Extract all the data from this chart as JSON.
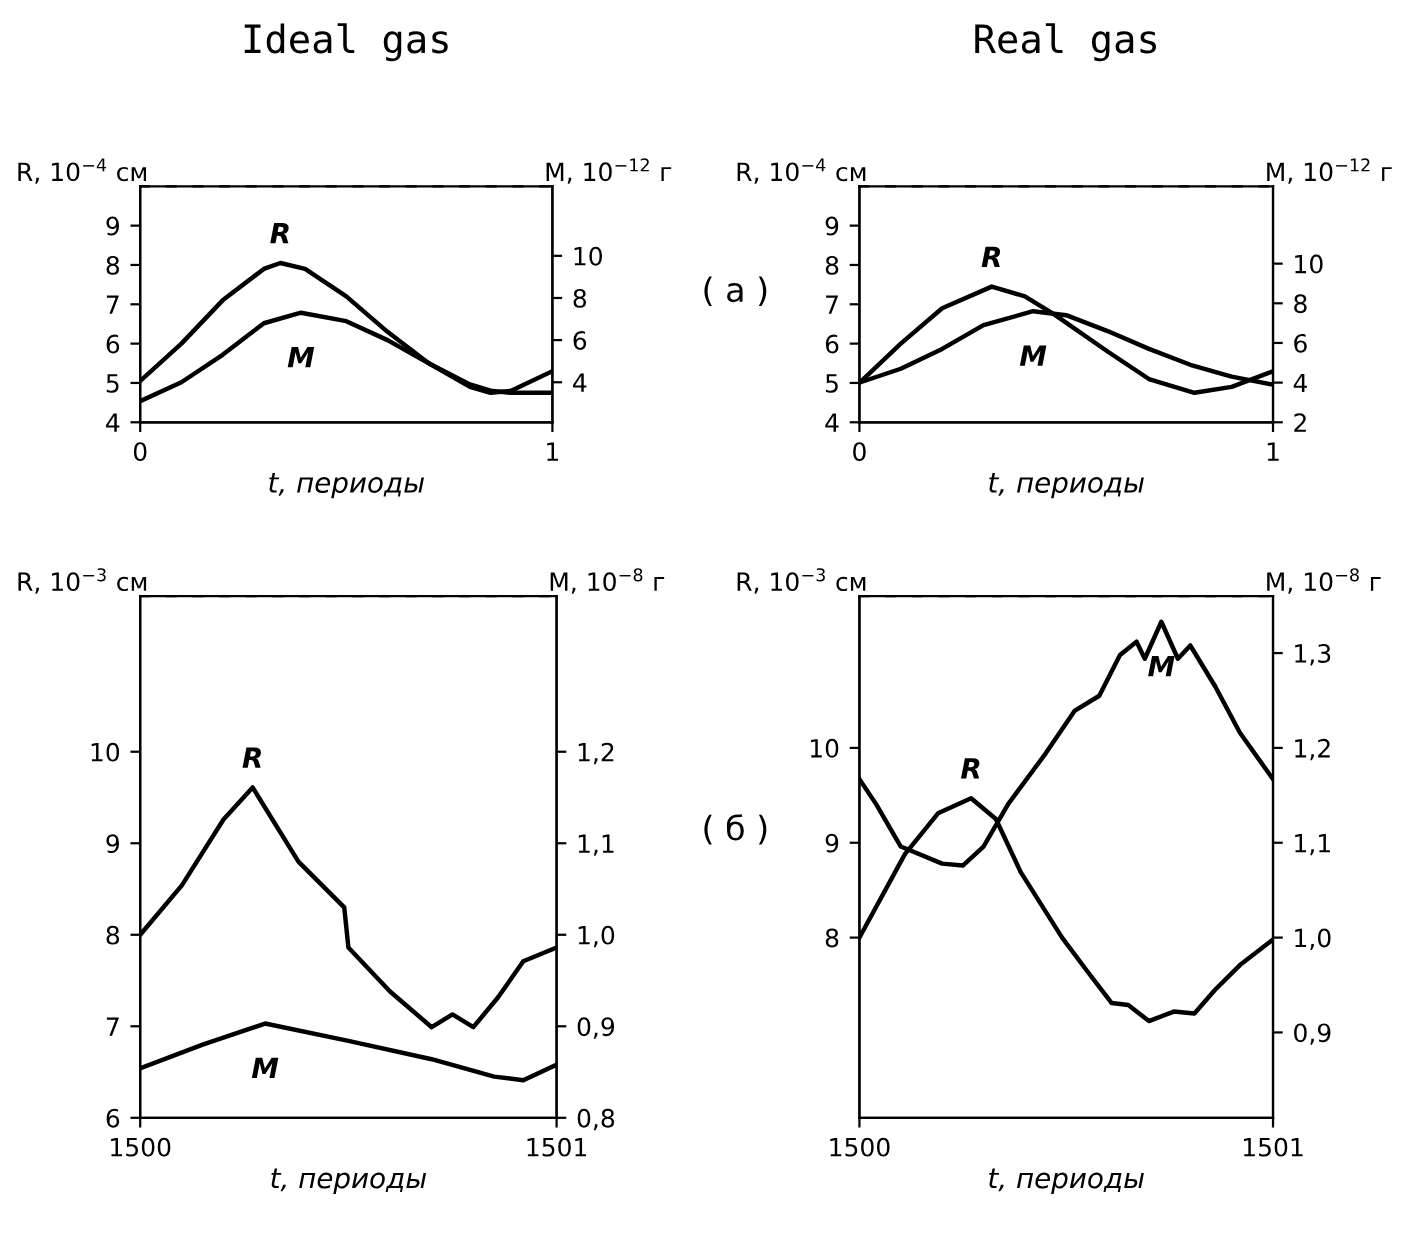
{
  "chart_data": [
    {
      "type": "line",
      "title": "Ideal gas",
      "xlabel": "t, периоды",
      "ylabel": "R, 10$^{−4}$ см",
      "y2label": "M, 10$^{−12}$ г",
      "xlim": [
        0,
        1
      ],
      "xticks": [
        0,
        1
      ],
      "ylim": [
        4,
        10
      ],
      "yticks": [
        4,
        5,
        6,
        7,
        8,
        9
      ],
      "y2lim": [
        2.1,
        13.3
      ],
      "y2ticks": [
        4,
        6,
        8,
        10
      ],
      "grid": false,
      "legend": false,
      "marker": "none",
      "line_style": "solid",
      "series": [
        {
          "name": "R",
          "color": "#000000",
          "x": [
            0,
            0.1,
            0.2,
            0.3,
            0.34,
            0.4,
            0.5,
            0.6,
            0.7,
            0.8,
            0.85,
            0.9,
            1.0
          ],
          "values": [
            5.05,
            6.0,
            7.1,
            7.9,
            8.05,
            7.9,
            7.2,
            6.3,
            5.5,
            4.9,
            4.75,
            4.8,
            5.3
          ]
        },
        {
          "name": "M",
          "color": "#000000",
          "axis": "y2",
          "x": [
            0,
            0.1,
            0.2,
            0.3,
            0.39,
            0.5,
            0.6,
            0.7,
            0.8,
            0.85,
            0.9,
            1.0
          ],
          "values": [
            3.1,
            4.0,
            5.3,
            6.8,
            7.3,
            6.9,
            6.0,
            4.9,
            3.9,
            3.6,
            3.5,
            3.5
          ]
        }
      ]
    },
    {
      "type": "line",
      "title": "Real gas",
      "xlabel": "t, периоды",
      "ylabel": "R, 10$^{−4}$ см",
      "y2label": "M, 10$^{−12}$ г",
      "annotations": [
        "( а )"
      ],
      "xlim": [
        0,
        1
      ],
      "xticks": [
        0,
        1
      ],
      "ylim": [
        4,
        10
      ],
      "yticks": [
        4,
        5,
        6,
        7,
        8,
        9
      ],
      "y2lim": [
        2,
        13.9
      ],
      "y2ticks": [
        2,
        4,
        6,
        8,
        10
      ],
      "grid": false,
      "legend": false,
      "marker": "none",
      "line_style": "solid",
      "series": [
        {
          "name": "R",
          "color": "#000000",
          "x": [
            0,
            0.1,
            0.2,
            0.32,
            0.4,
            0.47,
            0.6,
            0.7,
            0.81,
            0.9,
            1.0
          ],
          "values": [
            5.0,
            6.0,
            6.9,
            7.45,
            7.2,
            6.75,
            5.8,
            5.1,
            4.75,
            4.9,
            5.3
          ]
        },
        {
          "name": "M",
          "color": "#000000",
          "axis": "y2",
          "x": [
            0,
            0.1,
            0.2,
            0.3,
            0.42,
            0.5,
            0.6,
            0.7,
            0.8,
            0.9,
            1.0
          ],
          "values": [
            4.0,
            4.7,
            5.7,
            6.9,
            7.6,
            7.4,
            6.6,
            5.7,
            4.9,
            4.3,
            3.9
          ]
        }
      ]
    },
    {
      "type": "line",
      "xlabel": "t, периоды",
      "ylabel": "R, 10$^{−3}$ см",
      "y2label": "M, 10$^{−8}$ г",
      "xlim": [
        1500,
        1501
      ],
      "xticks": [
        1500,
        1501
      ],
      "ylim": [
        6,
        11.7
      ],
      "yticks": [
        6,
        7,
        8,
        9,
        10
      ],
      "y2lim": [
        0.8,
        1.37
      ],
      "y2ticks": [
        {
          "value": 0.8,
          "label": "0,8"
        },
        {
          "value": 0.9,
          "label": "0,9"
        },
        {
          "value": 1.0,
          "label": "1,0"
        },
        {
          "value": 1.1,
          "label": "1,1"
        },
        {
          "value": 1.2,
          "label": "1,2"
        }
      ],
      "grid": false,
      "legend": false,
      "marker": "none",
      "line_style": "solid",
      "series": [
        {
          "name": "R",
          "color": "#000000",
          "x": [
            1500,
            1500.1,
            1500.2,
            1500.27,
            1500.38,
            1500.49,
            1500.5,
            1500.6,
            1500.7,
            1500.75,
            1500.8,
            1500.86,
            1500.92,
            1501
          ],
          "values": [
            8.0,
            8.54,
            9.26,
            9.61,
            8.8,
            8.3,
            7.86,
            7.38,
            6.99,
            7.13,
            6.99,
            7.32,
            7.71,
            7.86
          ]
        },
        {
          "name": "M",
          "color": "#000000",
          "axis": "y2",
          "x": [
            1500,
            1500.15,
            1500.3,
            1500.5,
            1500.7,
            1500.85,
            1500.92,
            1501
          ],
          "values": [
            0.854,
            0.88,
            0.903,
            0.884,
            0.864,
            0.845,
            0.841,
            0.858
          ]
        }
      ]
    },
    {
      "type": "line",
      "xlabel": "t, периоды",
      "ylabel": "R, 10$^{−3}$ см",
      "y2label": "M, 10$^{−8}$ г",
      "annotations": [
        "( б )"
      ],
      "xlim": [
        1500,
        1501
      ],
      "xticks": [
        1500,
        1501
      ],
      "ylim": [
        6.1,
        11.6
      ],
      "yticks": [
        8,
        9,
        10
      ],
      "y2lim": [
        0.81,
        1.36
      ],
      "y2ticks": [
        {
          "value": 0.9,
          "label": "0,9"
        },
        {
          "value": 1.0,
          "label": "1,0"
        },
        {
          "value": 1.1,
          "label": "1,1"
        },
        {
          "value": 1.2,
          "label": "1,2"
        },
        {
          "value": 1.3,
          "label": "1,3"
        }
      ],
      "grid": false,
      "legend": false,
      "marker": "none",
      "line_style": "solid",
      "series": [
        {
          "name": "R",
          "color": "#000000",
          "x": [
            1500,
            1500.11,
            1500.19,
            1500.27,
            1500.33,
            1500.39,
            1500.49,
            1500.55,
            1500.61,
            1500.65,
            1500.7,
            1500.76,
            1500.81,
            1500.86,
            1500.92,
            1501
          ],
          "values": [
            8.0,
            8.88,
            9.31,
            9.47,
            9.25,
            8.69,
            8.0,
            7.65,
            7.31,
            7.29,
            7.12,
            7.22,
            7.2,
            7.45,
            7.71,
            7.98
          ]
        },
        {
          "name": "M",
          "color": "#000000",
          "axis": "y2",
          "x": [
            1500,
            1500.04,
            1500.1,
            1500.2,
            1500.25,
            1500.3,
            1500.36,
            1500.45,
            1500.52,
            1500.58,
            1500.63,
            1500.67,
            1500.69,
            1500.73,
            1500.77,
            1500.8,
            1500.86,
            1500.92,
            1501
          ],
          "values": [
            1.167,
            1.141,
            1.096,
            1.078,
            1.076,
            1.096,
            1.141,
            1.194,
            1.239,
            1.255,
            1.298,
            1.312,
            1.294,
            1.333,
            1.294,
            1.308,
            1.265,
            1.216,
            1.167
          ]
        }
      ]
    }
  ]
}
